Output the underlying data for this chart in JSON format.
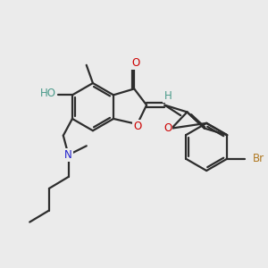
{
  "bg_color": "#ebebeb",
  "bond_color": "#2d2d2d",
  "bond_width": 1.6,
  "fig_size": [
    3.0,
    3.0
  ],
  "dpi": 100,
  "atom_colors": {
    "O": "#cc0000",
    "N": "#2222cc",
    "Br": "#b07820",
    "H": "#4a9a8a",
    "HO": "#4a9a8a",
    "C": "#2d2d2d"
  }
}
